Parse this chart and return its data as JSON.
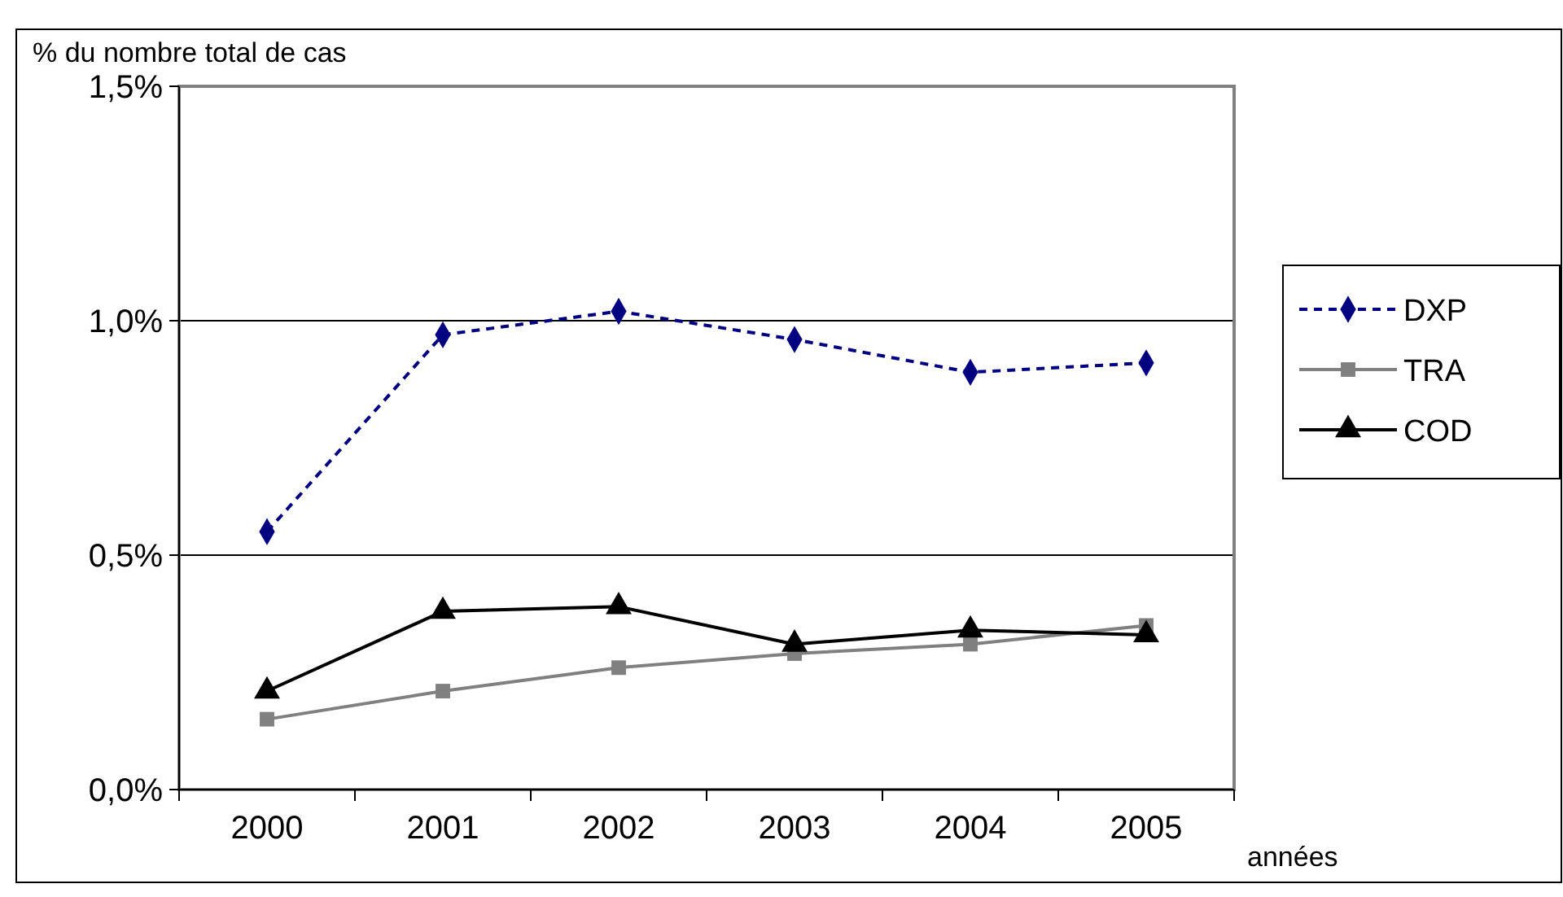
{
  "chart_data": {
    "type": "line",
    "ylabel": "% du nombre total de cas",
    "xlabel": "années",
    "categories": [
      "2000",
      "2001",
      "2002",
      "2003",
      "2004",
      "2005"
    ],
    "series": [
      {
        "name": "DXP",
        "color": "#000080",
        "values": [
          0.55,
          0.97,
          1.02,
          0.96,
          0.89,
          0.91
        ],
        "line_style": "dashed",
        "marker": "diamond"
      },
      {
        "name": "TRA",
        "color": "#808080",
        "values": [
          0.15,
          0.21,
          0.26,
          0.29,
          0.31,
          0.35
        ],
        "line_style": "solid",
        "marker": "square"
      },
      {
        "name": "COD",
        "color": "#000000",
        "values": [
          0.21,
          0.38,
          0.39,
          0.31,
          0.34,
          0.33
        ],
        "line_style": "solid",
        "marker": "triangle"
      }
    ],
    "ylim": [
      0,
      1.5
    ],
    "yticks": [
      {
        "value": 0,
        "label": "0,0%"
      },
      {
        "value": 0.5,
        "label": "0,5%"
      },
      {
        "value": 1,
        "label": "1,0%"
      },
      {
        "value": 1.5,
        "label": "1,5%"
      }
    ],
    "grid": "y",
    "legend": "right"
  }
}
